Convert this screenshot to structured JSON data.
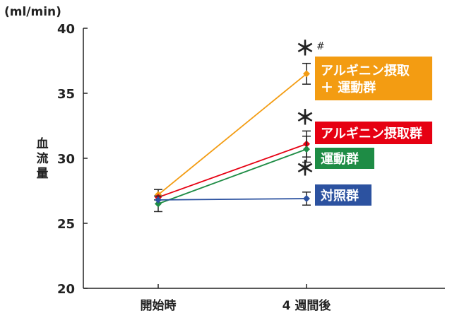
{
  "chart_data": {
    "type": "line",
    "unit": "(ml/min)",
    "ylabel": [
      "血",
      "流",
      "量"
    ],
    "categories": [
      "開始時",
      "4 週間後"
    ],
    "ylim": [
      20,
      40
    ],
    "yticks": [
      20,
      25,
      30,
      35,
      40
    ],
    "series": [
      {
        "name": "アルギニン摂取 ＋ 運動群",
        "label_lines": [
          "アルギニン摂取",
          "＋ 運動群"
        ],
        "color": "#f39c12",
        "values": [
          27.2,
          36.5
        ],
        "errors": [
          0.4,
          0.8
        ]
      },
      {
        "name": "アルギニン摂取群",
        "label_lines": [
          "アルギニン摂取群"
        ],
        "color": "#e60012",
        "values": [
          27.0,
          31.1
        ],
        "errors": [
          0,
          1.0
        ]
      },
      {
        "name": "運動群",
        "label_lines": [
          "運動群"
        ],
        "color": "#1e8c45",
        "values": [
          26.5,
          30.7
        ],
        "errors": [
          0.6,
          1.0
        ]
      },
      {
        "name": "対照群",
        "label_lines": [
          "対照群"
        ],
        "color": "#2c52a0",
        "values": [
          26.8,
          26.9
        ],
        "errors": [
          0,
          0.5
        ]
      }
    ],
    "annotations": {
      "star": "＊",
      "hash": "#"
    }
  }
}
